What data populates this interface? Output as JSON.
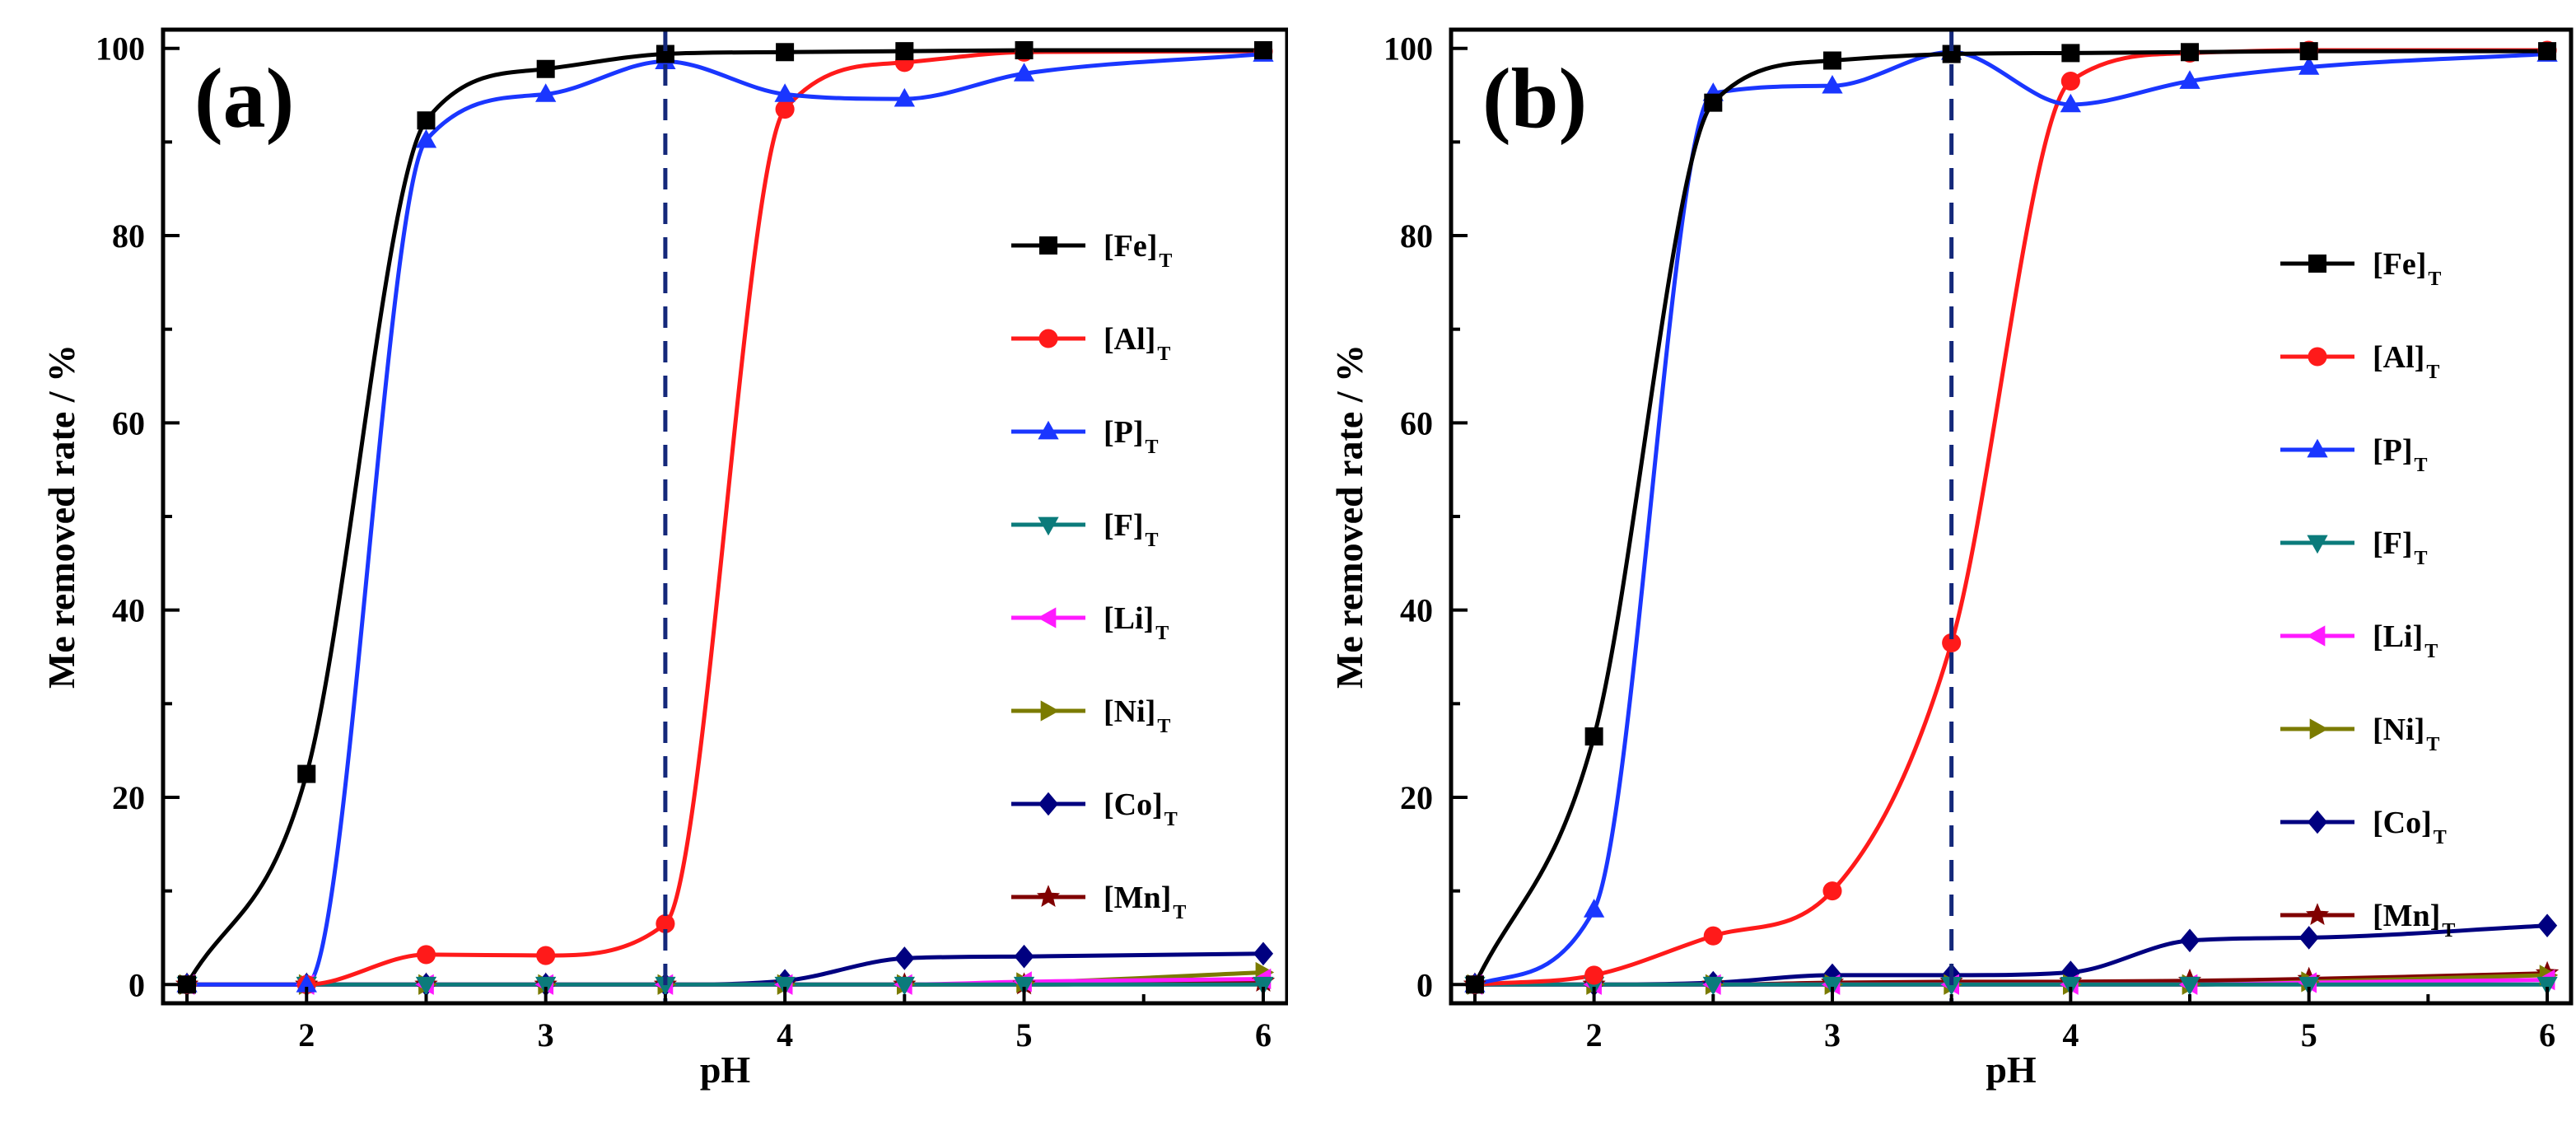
{
  "chart_data": [
    {
      "type": "line",
      "panel_label": "(a)",
      "xlabel": "pH",
      "ylabel": "Me removed rate / %",
      "xlim": [
        1.4,
        6.1
      ],
      "ylim": [
        -2,
        102
      ],
      "xticks": [
        2,
        3,
        4,
        5,
        6
      ],
      "yticks": [
        0,
        20,
        40,
        60,
        80,
        100
      ],
      "grid": false,
      "legend_position": "right",
      "reference_line": {
        "x": 3.5,
        "style": "dashed",
        "color": "#14287a"
      },
      "x": [
        1.5,
        2,
        2.5,
        3,
        3.5,
        4,
        4.5,
        5,
        6
      ],
      "series": [
        {
          "name": "[Fe]",
          "subscript": "T",
          "color": "#000000",
          "marker": "square",
          "values": [
            0,
            22.5,
            92.3,
            97.8,
            99.4,
            99.6,
            99.7,
            99.8,
            99.8
          ]
        },
        {
          "name": "[Al]",
          "subscript": "T",
          "color": "#ff1a1a",
          "marker": "circle",
          "values": [
            0,
            0,
            3.2,
            3.1,
            6.5,
            93.5,
            98.5,
            99.6,
            99.7
          ]
        },
        {
          "name": "[P]",
          "subscript": "T",
          "color": "#1a36ff",
          "marker": "triangle-up",
          "values": [
            0,
            0,
            90.2,
            95.1,
            98.6,
            95.1,
            94.6,
            97.3,
            99.4
          ]
        },
        {
          "name": "[F]",
          "subscript": "T",
          "color": "#0b7b7b",
          "marker": "triangle-down",
          "values": [
            0,
            0,
            0,
            0,
            0,
            0,
            0,
            0,
            0
          ]
        },
        {
          "name": "[Li]",
          "subscript": "T",
          "color": "#ff1aff",
          "marker": "triangle-left",
          "values": [
            0,
            0,
            0,
            0,
            0,
            0,
            0,
            0.3,
            0.6
          ]
        },
        {
          "name": "[Ni]",
          "subscript": "T",
          "color": "#7b7b00",
          "marker": "triangle-right",
          "values": [
            0,
            0,
            0,
            0,
            0,
            0,
            0,
            0.2,
            1.3
          ]
        },
        {
          "name": "[Co]",
          "subscript": "T",
          "color": "#000080",
          "marker": "diamond",
          "values": [
            0,
            0,
            0,
            0,
            0,
            0.4,
            2.8,
            3.0,
            3.3
          ]
        },
        {
          "name": "[Mn]",
          "subscript": "T",
          "color": "#800000",
          "marker": "star",
          "values": [
            0,
            0,
            0,
            0,
            0,
            0,
            0,
            0,
            0.3
          ]
        }
      ]
    },
    {
      "type": "line",
      "panel_label": "(b)",
      "xlabel": "pH",
      "ylabel": "Me removed rate / %",
      "xlim": [
        1.4,
        6.1
      ],
      "ylim": [
        -2,
        102
      ],
      "xticks": [
        2,
        3,
        4,
        5,
        6
      ],
      "yticks": [
        0,
        20,
        40,
        60,
        80,
        100
      ],
      "grid": false,
      "legend_position": "right",
      "reference_line": {
        "x": 3.5,
        "style": "dashed",
        "color": "#14287a"
      },
      "x": [
        1.5,
        2,
        2.5,
        3,
        3.5,
        4,
        4.5,
        5,
        6
      ],
      "series": [
        {
          "name": "[Fe]",
          "subscript": "T",
          "color": "#000000",
          "marker": "square",
          "values": [
            0,
            26.5,
            94.2,
            98.7,
            99.4,
            99.5,
            99.6,
            99.7,
            99.7
          ]
        },
        {
          "name": "[Al]",
          "subscript": "T",
          "color": "#ff1a1a",
          "marker": "circle",
          "values": [
            0,
            1.0,
            5.2,
            10.0,
            36.5,
            96.5,
            99.5,
            99.8,
            99.8
          ]
        },
        {
          "name": "[P]",
          "subscript": "T",
          "color": "#1a36ff",
          "marker": "triangle-up",
          "values": [
            0,
            8.0,
            95.2,
            96.0,
            99.6,
            94.0,
            96.5,
            98.0,
            99.4
          ]
        },
        {
          "name": "[F]",
          "subscript": "T",
          "color": "#0b7b7b",
          "marker": "triangle-down",
          "values": [
            0,
            0,
            0,
            0,
            0,
            0,
            0,
            0,
            0
          ]
        },
        {
          "name": "[Li]",
          "subscript": "T",
          "color": "#ff1aff",
          "marker": "triangle-left",
          "values": [
            0,
            0,
            0,
            0,
            0,
            0,
            0,
            0.2,
            0.5
          ]
        },
        {
          "name": "[Ni]",
          "subscript": "T",
          "color": "#7b7b00",
          "marker": "triangle-right",
          "values": [
            0,
            0,
            0,
            0,
            0,
            0,
            0,
            0.3,
            1.0
          ]
        },
        {
          "name": "[Co]",
          "subscript": "T",
          "color": "#000080",
          "marker": "diamond",
          "values": [
            0,
            0,
            0.2,
            1.0,
            1.0,
            1.3,
            4.7,
            5.0,
            6.3
          ]
        },
        {
          "name": "[Mn]",
          "subscript": "T",
          "color": "#800000",
          "marker": "star",
          "values": [
            0,
            0,
            0,
            0.2,
            0.3,
            0.3,
            0.4,
            0.6,
            1.2
          ]
        }
      ]
    }
  ]
}
